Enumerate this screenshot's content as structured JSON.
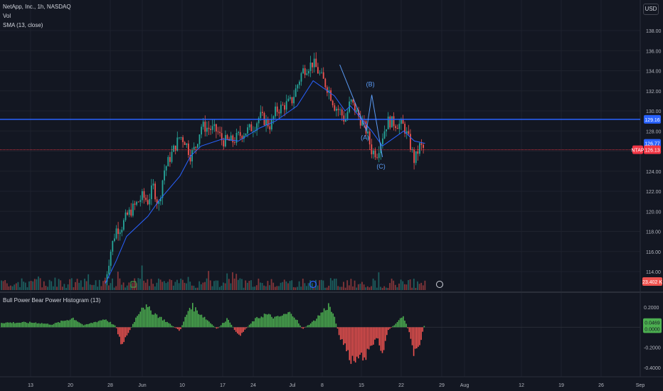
{
  "legend": {
    "symbol": "NetApp, Inc., 1h, NASDAQ",
    "vol": "Vol",
    "sma": "SMA (13, close)",
    "indicator": "Bull Power Bear Power Histogram (13)"
  },
  "currency": "USD",
  "colors": {
    "background": "#131722",
    "up": "#26a69a",
    "down": "#ef5350",
    "sma": "#2962ff",
    "hline": "#2962ff",
    "hist_up": "#4caf50",
    "hist_down": "#ef5350",
    "price_line": "#f23645"
  },
  "price_axis": {
    "ticks": [
      "138.00",
      "136.00",
      "134.00",
      "132.00",
      "130.00",
      "128.00",
      "126.00",
      "124.00",
      "122.00",
      "120.00",
      "118.00",
      "116.00",
      "114.00"
    ]
  },
  "price_badges": {
    "hline": "129.16",
    "sma": "126.77",
    "symbol": "NTAP",
    "last": "126.13",
    "volume": "23.402 K"
  },
  "indicator_axis": {
    "ticks": [
      "0.2000",
      "-0.2000",
      "-0.4000"
    ],
    "badge_up": "0.0469",
    "badge_zero": "0.0000"
  },
  "time_axis": {
    "labels": [
      "13",
      "20",
      "28",
      "Jun",
      "10",
      "17",
      "24",
      "Jul",
      "8",
      "15",
      "22",
      "29",
      "Aug",
      "12",
      "19",
      "26",
      "Sep"
    ]
  },
  "wave_labels": [
    "(A)",
    "(B)",
    "(C)"
  ],
  "chart_data": {
    "type": "candlestick",
    "series": [
      {
        "name": "NetApp, Inc., 1h, NASDAQ",
        "close_path": [
          {
            "date": "May 27",
            "close": 113.0
          },
          {
            "date": "May 28",
            "close": 116.0
          },
          {
            "date": "May 29",
            "close": 118.2
          },
          {
            "date": "May 30",
            "close": 118.4
          },
          {
            "date": "May 31",
            "close": 119.5
          },
          {
            "date": "Jun 3",
            "close": 121.5
          },
          {
            "date": "Jun 4",
            "close": 121.0
          },
          {
            "date": "Jun 5",
            "close": 122.5
          },
          {
            "date": "Jun 6",
            "close": 120.5
          },
          {
            "date": "Jun 7",
            "close": 124.0
          },
          {
            "date": "Jun 10",
            "close": 127.5
          },
          {
            "date": "Jun 11",
            "close": 127.0
          },
          {
            "date": "Jun 12",
            "close": 125.5
          },
          {
            "date": "Jun 13",
            "close": 126.5
          },
          {
            "date": "Jun 14",
            "close": 128.5
          },
          {
            "date": "Jun 17",
            "close": 128.0
          },
          {
            "date": "Jun 18",
            "close": 127.0
          },
          {
            "date": "Jun 20",
            "close": 127.0
          },
          {
            "date": "Jun 21",
            "close": 127.5
          },
          {
            "date": "Jun 24",
            "close": 128.5
          },
          {
            "date": "Jun 25",
            "close": 129.5
          },
          {
            "date": "Jun 26",
            "close": 129.0
          },
          {
            "date": "Jun 27",
            "close": 128.5
          },
          {
            "date": "Jun 28",
            "close": 130.0
          },
          {
            "date": "Jul 1",
            "close": 131.0
          },
          {
            "date": "Jul 2",
            "close": 132.5
          },
          {
            "date": "Jul 3",
            "close": 134.0
          },
          {
            "date": "Jul 5",
            "close": 134.8
          },
          {
            "date": "Jul 8",
            "close": 132.0
          },
          {
            "date": "Jul 9",
            "close": 130.5
          },
          {
            "date": "Jul 10",
            "close": 130.0
          },
          {
            "date": "Jul 11",
            "close": 129.0
          },
          {
            "date": "Jul 12",
            "close": 131.0
          },
          {
            "date": "Jul 15",
            "close": 128.0
          },
          {
            "date": "Jul 16",
            "close": 126.0
          },
          {
            "date": "Jul 17",
            "close": 125.8
          },
          {
            "date": "Jul 18",
            "close": 127.5
          },
          {
            "date": "Jul 19",
            "close": 129.0
          },
          {
            "date": "Jul 22",
            "close": 128.5
          },
          {
            "date": "Jul 23",
            "close": 127.0
          },
          {
            "date": "Jul 24",
            "close": 125.0
          },
          {
            "date": "Jul 25",
            "close": 126.5
          },
          {
            "date": "Jul 26",
            "close": 126.13
          }
        ]
      },
      {
        "name": "SMA (13, close)",
        "values": [
          {
            "date": "May 27",
            "value": 112.8
          },
          {
            "date": "May 29",
            "value": 115.0
          },
          {
            "date": "May 31",
            "value": 117.5
          },
          {
            "date": "Jun 4",
            "value": 119.5
          },
          {
            "date": "Jun 6",
            "value": 121.0
          },
          {
            "date": "Jun 10",
            "value": 123.5
          },
          {
            "date": "Jun 12",
            "value": 125.5
          },
          {
            "date": "Jun 14",
            "value": 126.5
          },
          {
            "date": "Jun 18",
            "value": 127.2
          },
          {
            "date": "Jun 21",
            "value": 127.0
          },
          {
            "date": "Jun 25",
            "value": 128.3
          },
          {
            "date": "Jun 28",
            "value": 129.0
          },
          {
            "date": "Jul 2",
            "value": 130.5
          },
          {
            "date": "Jul 5",
            "value": 133.0
          },
          {
            "date": "Jul 9",
            "value": 131.5
          },
          {
            "date": "Jul 11",
            "value": 130.0
          },
          {
            "date": "Jul 12",
            "value": 130.5
          },
          {
            "date": "Jul 16",
            "value": 128.0
          },
          {
            "date": "Jul 18",
            "value": 126.5
          },
          {
            "date": "Jul 22",
            "value": 128.0
          },
          {
            "date": "Jul 24",
            "value": 127.0
          },
          {
            "date": "Jul 26",
            "value": 126.77
          }
        ]
      }
    ],
    "horizontal_line": 129.16,
    "last_price": 126.13,
    "last_volume": "23.402 K",
    "wave_points": [
      {
        "label": "(A)",
        "date": "Jul 15",
        "price": 128.0
      },
      {
        "label": "(B)",
        "date": "Jul 16",
        "price": 131.6
      },
      {
        "label": "(C)",
        "date": "Jul 18",
        "price": 125.4
      }
    ],
    "histogram": {
      "name": "Bull Power Bear Power Histogram (13)",
      "last": 0.0469,
      "range": [
        -0.4,
        0.2
      ],
      "envelope": [
        {
          "date": "May 14",
          "value": 0.05
        },
        {
          "date": "May 17",
          "value": 0.03
        },
        {
          "date": "May 21",
          "value": 0.1
        },
        {
          "date": "May 23",
          "value": 0.02
        },
        {
          "date": "May 27",
          "value": 0.09
        },
        {
          "date": "May 29",
          "value": 0.01
        },
        {
          "date": "May 30",
          "value": -0.18
        },
        {
          "date": "May 31",
          "value": -0.1
        },
        {
          "date": "Jun 3",
          "value": 0.24
        },
        {
          "date": "Jun 5",
          "value": 0.16
        },
        {
          "date": "Jun 7",
          "value": 0.08
        },
        {
          "date": "Jun 10",
          "value": -0.04
        },
        {
          "date": "Jun 12",
          "value": 0.24
        },
        {
          "date": "Jun 14",
          "value": 0.14
        },
        {
          "date": "Jun 17",
          "value": -0.02
        },
        {
          "date": "Jun 19",
          "value": 0.1
        },
        {
          "date": "Jun 21",
          "value": -0.1
        },
        {
          "date": "Jun 24",
          "value": 0.08
        },
        {
          "date": "Jun 26",
          "value": 0.14
        },
        {
          "date": "Jun 28",
          "value": 0.1
        },
        {
          "date": "Jul 1",
          "value": 0.16
        },
        {
          "date": "Jul 3",
          "value": -0.02
        },
        {
          "date": "Jul 5",
          "value": 0.06
        },
        {
          "date": "Jul 8",
          "value": 0.24
        },
        {
          "date": "Jul 9",
          "value": 0.1
        },
        {
          "date": "Jul 10",
          "value": -0.1
        },
        {
          "date": "Jul 11",
          "value": -0.2
        },
        {
          "date": "Jul 12",
          "value": -0.38
        },
        {
          "date": "Jul 15",
          "value": -0.3
        },
        {
          "date": "Jul 16",
          "value": -0.2
        },
        {
          "date": "Jul 17",
          "value": -0.1
        },
        {
          "date": "Jul 18",
          "value": -0.28
        },
        {
          "date": "Jul 19",
          "value": -0.04
        },
        {
          "date": "Jul 22",
          "value": 0.12
        },
        {
          "date": "Jul 23",
          "value": -0.05
        },
        {
          "date": "Jul 24",
          "value": -0.3
        },
        {
          "date": "Jul 25",
          "value": -0.18
        },
        {
          "date": "Jul 26",
          "value": 0.05
        }
      ]
    }
  }
}
